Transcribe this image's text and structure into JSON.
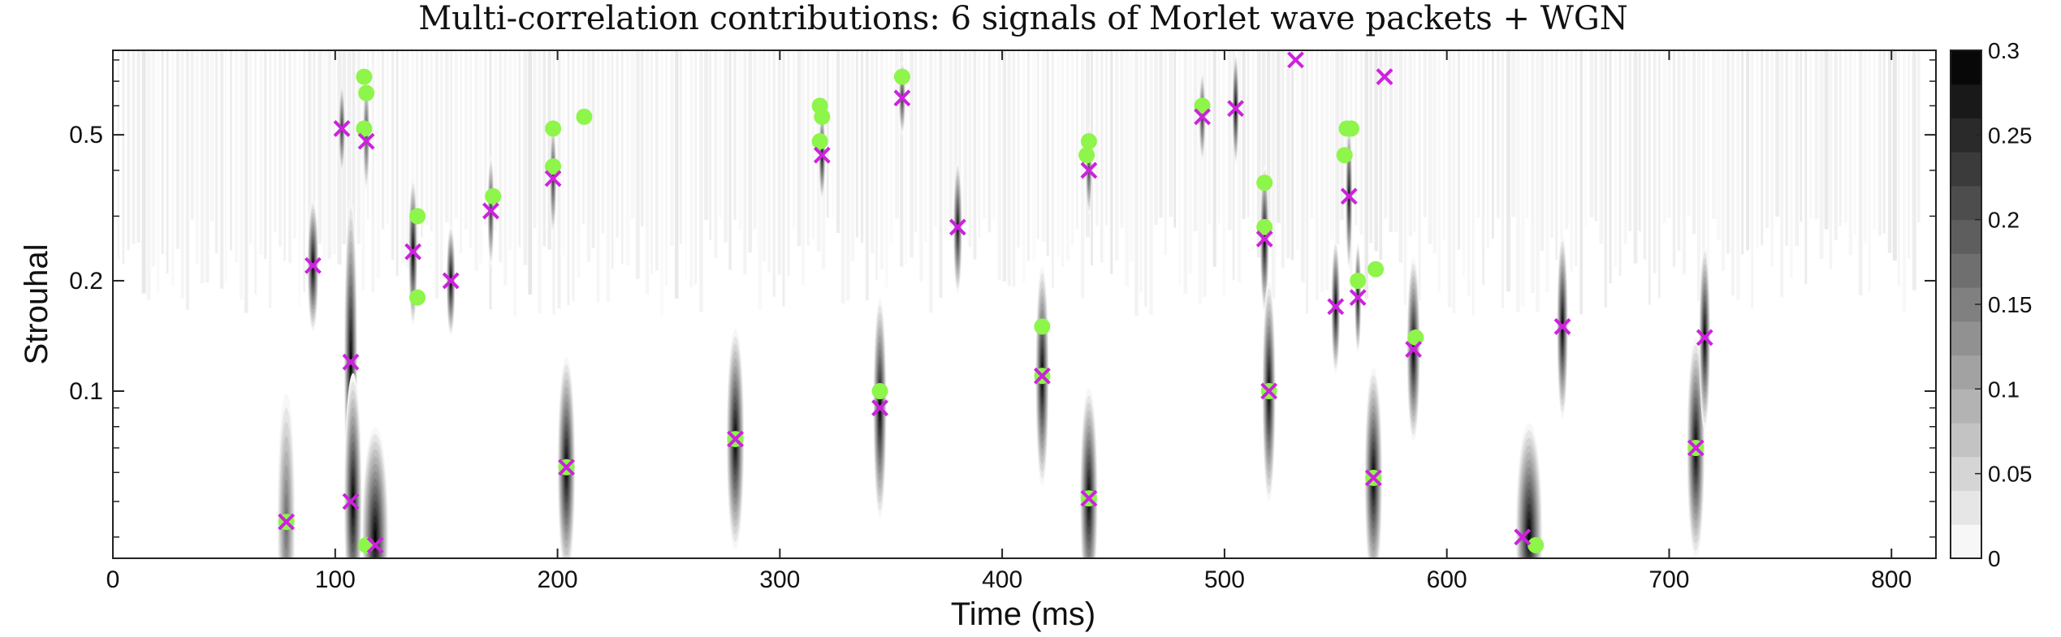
{
  "chart_data": {
    "type": "heatmap",
    "title": "Multi-correlation contributions: 6 signals of Morlet wave packets + WGN",
    "xlabel": "Time (ms)",
    "ylabel": "Strouhal",
    "xlim": [
      0,
      820
    ],
    "ylim": [
      0.035,
      0.85
    ],
    "y_scale": "log",
    "x_ticks": [
      0,
      100,
      200,
      300,
      400,
      500,
      600,
      700,
      800
    ],
    "x_tick_labels": [
      "0",
      "100",
      "200",
      "300",
      "400",
      "500",
      "600",
      "700",
      "800"
    ],
    "y_ticks": [
      0.1,
      0.2,
      0.5
    ],
    "y_tick_labels": [
      "0.1",
      "0.2",
      "0.5"
    ],
    "colorbar": {
      "colormap": "gray-reversed",
      "range": [
        0,
        0.3
      ],
      "levels": 15,
      "ticks": [
        0,
        0.05,
        0.1,
        0.15,
        0.2,
        0.25,
        0.3
      ],
      "tick_labels": [
        "0",
        "0.05",
        "0.1",
        "0.15",
        "0.2",
        "0.25",
        "0.3"
      ]
    },
    "blobs": [
      {
        "t": 78,
        "s": 0.044,
        "ht": 4,
        "hs": 0.35,
        "a": 0.18
      },
      {
        "t": 90,
        "s": 0.22,
        "ht": 2.5,
        "hs": 0.18,
        "a": 0.3
      },
      {
        "t": 107,
        "s": 0.12,
        "ht": 3,
        "hs": 0.45,
        "a": 0.3
      },
      {
        "t": 108,
        "s": 0.05,
        "ht": 4,
        "hs": 0.35,
        "a": 0.3
      },
      {
        "t": 118,
        "s": 0.04,
        "ht": 6,
        "hs": 0.3,
        "a": 0.3
      },
      {
        "t": 103,
        "s": 0.52,
        "ht": 1.5,
        "hs": 0.12,
        "a": 0.25
      },
      {
        "t": 114,
        "s": 0.5,
        "ht": 1.5,
        "hs": 0.15,
        "a": 0.22
      },
      {
        "t": 135,
        "s": 0.24,
        "ht": 2,
        "hs": 0.2,
        "a": 0.3
      },
      {
        "t": 152,
        "s": 0.2,
        "ht": 2,
        "hs": 0.15,
        "a": 0.3
      },
      {
        "t": 170,
        "s": 0.31,
        "ht": 1.5,
        "hs": 0.15,
        "a": 0.25
      },
      {
        "t": 198,
        "s": 0.38,
        "ht": 1.5,
        "hs": 0.15,
        "a": 0.25
      },
      {
        "t": 204,
        "s": 0.062,
        "ht": 4,
        "hs": 0.3,
        "a": 0.3
      },
      {
        "t": 280,
        "s": 0.074,
        "ht": 4,
        "hs": 0.3,
        "a": 0.3
      },
      {
        "t": 319,
        "s": 0.44,
        "ht": 1.5,
        "hs": 0.12,
        "a": 0.28
      },
      {
        "t": 345,
        "s": 0.09,
        "ht": 3,
        "hs": 0.3,
        "a": 0.3
      },
      {
        "t": 355,
        "s": 0.63,
        "ht": 1.5,
        "hs": 0.1,
        "a": 0.25
      },
      {
        "t": 380,
        "s": 0.28,
        "ht": 2,
        "hs": 0.18,
        "a": 0.28
      },
      {
        "t": 418,
        "s": 0.11,
        "ht": 3,
        "hs": 0.3,
        "a": 0.3
      },
      {
        "t": 439,
        "s": 0.051,
        "ht": 4,
        "hs": 0.3,
        "a": 0.3
      },
      {
        "t": 439,
        "s": 0.4,
        "ht": 1.5,
        "hs": 0.12,
        "a": 0.22
      },
      {
        "t": 490,
        "s": 0.56,
        "ht": 1.5,
        "hs": 0.12,
        "a": 0.25
      },
      {
        "t": 505,
        "s": 0.59,
        "ht": 1.5,
        "hs": 0.15,
        "a": 0.3
      },
      {
        "t": 518,
        "s": 0.26,
        "ht": 2,
        "hs": 0.2,
        "a": 0.3
      },
      {
        "t": 520,
        "s": 0.1,
        "ht": 3,
        "hs": 0.3,
        "a": 0.3
      },
      {
        "t": 550,
        "s": 0.17,
        "ht": 2,
        "hs": 0.18,
        "a": 0.3
      },
      {
        "t": 556,
        "s": 0.34,
        "ht": 1.5,
        "hs": 0.2,
        "a": 0.28
      },
      {
        "t": 560,
        "s": 0.18,
        "ht": 1.5,
        "hs": 0.15,
        "a": 0.28
      },
      {
        "t": 567,
        "s": 0.058,
        "ht": 4,
        "hs": 0.3,
        "a": 0.3
      },
      {
        "t": 585,
        "s": 0.13,
        "ht": 3,
        "hs": 0.25,
        "a": 0.3
      },
      {
        "t": 637,
        "s": 0.041,
        "ht": 6,
        "hs": 0.3,
        "a": 0.3
      },
      {
        "t": 652,
        "s": 0.15,
        "ht": 2.5,
        "hs": 0.25,
        "a": 0.3
      },
      {
        "t": 712,
        "s": 0.07,
        "ht": 4,
        "hs": 0.3,
        "a": 0.3
      },
      {
        "t": 716,
        "s": 0.14,
        "ht": 2.5,
        "hs": 0.25,
        "a": 0.3
      }
    ],
    "series": [
      {
        "name": "",
        "marker": "circle",
        "color": "#8ef54a",
        "points": [
          [
            78,
            0.044
          ],
          [
            113,
            0.72
          ],
          [
            114,
            0.65
          ],
          [
            113,
            0.52
          ],
          [
            114,
            0.038
          ],
          [
            137,
            0.3
          ],
          [
            137,
            0.18
          ],
          [
            171,
            0.34
          ],
          [
            198,
            0.52
          ],
          [
            198,
            0.41
          ],
          [
            212,
            0.56
          ],
          [
            204,
            0.062
          ],
          [
            280,
            0.074
          ],
          [
            318,
            0.6
          ],
          [
            319,
            0.56
          ],
          [
            318,
            0.48
          ],
          [
            345,
            0.1
          ],
          [
            355,
            0.72
          ],
          [
            418,
            0.15
          ],
          [
            418,
            0.11
          ],
          [
            439,
            0.48
          ],
          [
            438,
            0.44
          ],
          [
            439,
            0.051
          ],
          [
            490,
            0.6
          ],
          [
            518,
            0.37
          ],
          [
            518,
            0.28
          ],
          [
            520,
            0.1
          ],
          [
            555,
            0.52
          ],
          [
            557,
            0.52
          ],
          [
            554,
            0.44
          ],
          [
            560,
            0.2
          ],
          [
            568,
            0.215
          ],
          [
            567,
            0.058
          ],
          [
            586,
            0.14
          ],
          [
            640,
            0.038
          ],
          [
            712,
            0.07
          ]
        ]
      },
      {
        "name": "",
        "marker": "x",
        "color": "#cc22dd",
        "points": [
          [
            78,
            0.044
          ],
          [
            90,
            0.22
          ],
          [
            103,
            0.52
          ],
          [
            107,
            0.12
          ],
          [
            114,
            0.48
          ],
          [
            107,
            0.05
          ],
          [
            118,
            0.038
          ],
          [
            135,
            0.24
          ],
          [
            152,
            0.2
          ],
          [
            170,
            0.31
          ],
          [
            198,
            0.38
          ],
          [
            204,
            0.062
          ],
          [
            280,
            0.074
          ],
          [
            319,
            0.44
          ],
          [
            345,
            0.09
          ],
          [
            355,
            0.63
          ],
          [
            380,
            0.28
          ],
          [
            418,
            0.11
          ],
          [
            439,
            0.051
          ],
          [
            439,
            0.4
          ],
          [
            490,
            0.56
          ],
          [
            505,
            0.59
          ],
          [
            532,
            0.8
          ],
          [
            572,
            0.72
          ],
          [
            518,
            0.26
          ],
          [
            520,
            0.1
          ],
          [
            550,
            0.17
          ],
          [
            556,
            0.34
          ],
          [
            560,
            0.18
          ],
          [
            567,
            0.058
          ],
          [
            585,
            0.13
          ],
          [
            634,
            0.04
          ],
          [
            652,
            0.15
          ],
          [
            712,
            0.07
          ],
          [
            716,
            0.14
          ]
        ]
      }
    ]
  }
}
